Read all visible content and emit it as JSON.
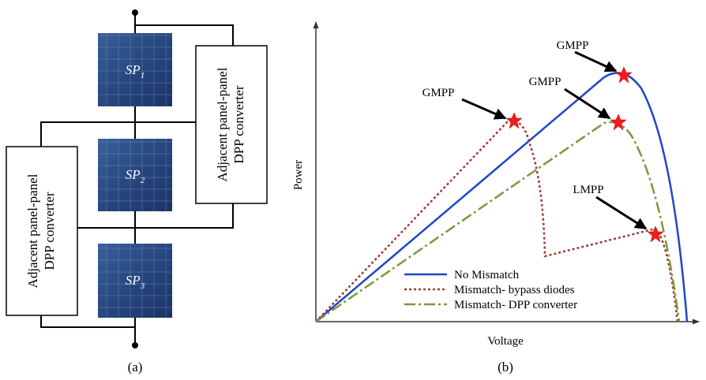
{
  "panel_a": {
    "caption": "(a)",
    "panels": [
      {
        "label": "SP",
        "sub": "1"
      },
      {
        "label": "SP",
        "sub": "2"
      },
      {
        "label": "SP",
        "sub": "3"
      }
    ],
    "converters": [
      {
        "line1": "Adjacent panel-panel",
        "line2": "DPP converter"
      },
      {
        "line1": "Adjacent panel-panel",
        "line2": "DPP converter"
      }
    ]
  },
  "panel_b": {
    "caption": "(b)",
    "y_label": "Power",
    "x_label": "Voltage",
    "annotations": [
      "GMPP",
      "GMPP",
      "GMPP",
      "LMPP"
    ],
    "legend": [
      "No Mismatch",
      "Mismatch- bypass diodes",
      "Mismatch- DPP converter"
    ]
  }
}
